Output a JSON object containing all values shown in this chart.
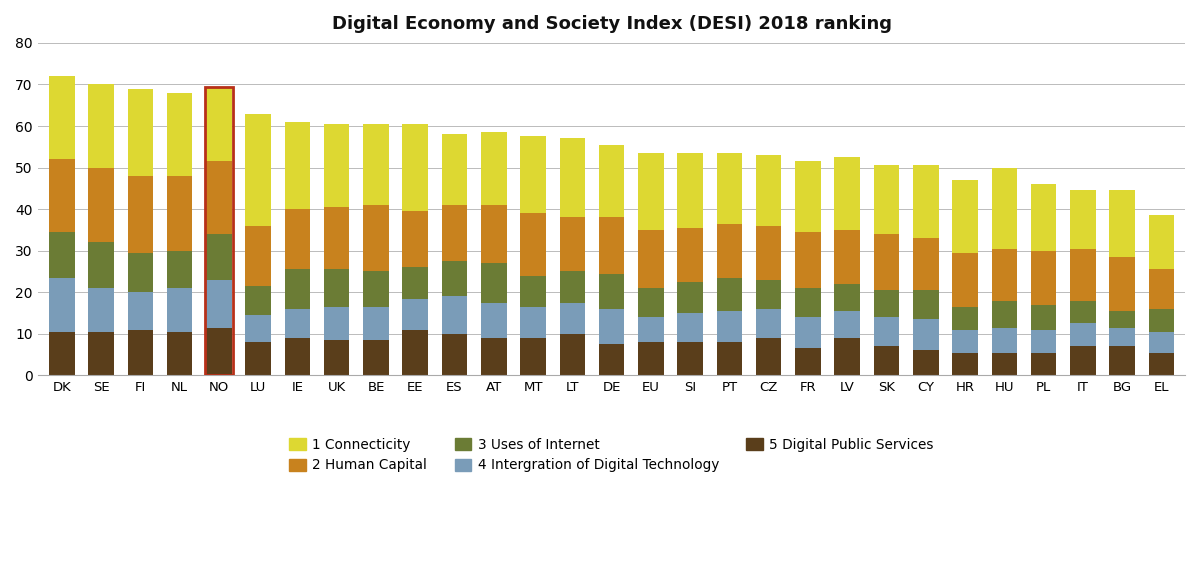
{
  "title": "Digital Economy and Society Index (DESI) 2018 ranking",
  "countries": [
    "DK",
    "SE",
    "FI",
    "NL",
    "NO",
    "LU",
    "IE",
    "UK",
    "BE",
    "EE",
    "ES",
    "AT",
    "MT",
    "LT",
    "DE",
    "EU",
    "SI",
    "PT",
    "CZ",
    "FR",
    "LV",
    "SK",
    "CY",
    "HR",
    "HU",
    "PL",
    "IT",
    "BG",
    "EL"
  ],
  "highlighted_country": "NO",
  "components": {
    "digital_public_services": [
      10.5,
      10.5,
      11.0,
      10.5,
      11.5,
      8.0,
      9.0,
      8.5,
      8.5,
      11.0,
      10.0,
      9.0,
      9.0,
      10.0,
      7.5,
      8.0,
      8.0,
      8.0,
      9.0,
      6.5,
      9.0,
      7.0,
      6.0,
      5.5,
      5.5,
      5.5,
      7.0,
      7.0,
      5.5
    ],
    "digital_technology": [
      13.0,
      10.5,
      9.0,
      10.5,
      11.5,
      6.5,
      7.0,
      8.0,
      8.0,
      7.5,
      9.0,
      8.5,
      7.5,
      7.5,
      8.5,
      6.0,
      7.0,
      7.5,
      7.0,
      7.5,
      6.5,
      7.0,
      7.5,
      5.5,
      6.0,
      5.5,
      5.5,
      4.5,
      5.0
    ],
    "uses_of_internet": [
      11.0,
      11.0,
      9.5,
      9.0,
      11.0,
      7.0,
      9.5,
      9.0,
      8.5,
      7.5,
      8.5,
      9.5,
      7.5,
      7.5,
      8.5,
      7.0,
      7.5,
      8.0,
      7.0,
      7.0,
      6.5,
      6.5,
      7.0,
      5.5,
      6.5,
      6.0,
      5.5,
      4.0,
      5.5
    ],
    "human_capital": [
      17.5,
      18.0,
      18.5,
      18.0,
      17.5,
      14.5,
      14.5,
      15.0,
      16.0,
      13.5,
      13.5,
      14.0,
      15.0,
      13.0,
      13.5,
      14.0,
      13.0,
      13.0,
      13.0,
      13.5,
      13.0,
      13.5,
      12.5,
      13.0,
      12.5,
      13.0,
      12.5,
      13.0,
      9.5
    ],
    "connectivity": [
      20.0,
      20.0,
      21.0,
      20.0,
      18.0,
      27.0,
      21.0,
      20.0,
      19.5,
      21.0,
      17.0,
      17.5,
      18.5,
      19.0,
      17.5,
      18.5,
      18.0,
      17.0,
      17.0,
      17.0,
      17.5,
      16.5,
      17.5,
      17.5,
      19.5,
      16.0,
      14.0,
      16.0,
      13.0
    ]
  },
  "colors": {
    "digital_public_services": "#5a3e1b",
    "digital_technology": "#7a9cb8",
    "uses_of_internet": "#6b7c35",
    "human_capital": "#c8821e",
    "connectivity": "#ddd832"
  },
  "ylim": [
    0,
    80
  ],
  "yticks": [
    0,
    10,
    20,
    30,
    40,
    50,
    60,
    70,
    80
  ],
  "highlight_color": "#b83018",
  "background_color": "#ffffff",
  "legend": [
    {
      "label": "1 Connecticity",
      "key": "connectivity"
    },
    {
      "label": "2 Human Capital",
      "key": "human_capital"
    },
    {
      "label": "3 Uses of Internet",
      "key": "uses_of_internet"
    },
    {
      "label": "4 Intergration of Digital Technology",
      "key": "digital_technology"
    },
    {
      "label": "5 Digital Public Services",
      "key": "digital_public_services"
    }
  ]
}
